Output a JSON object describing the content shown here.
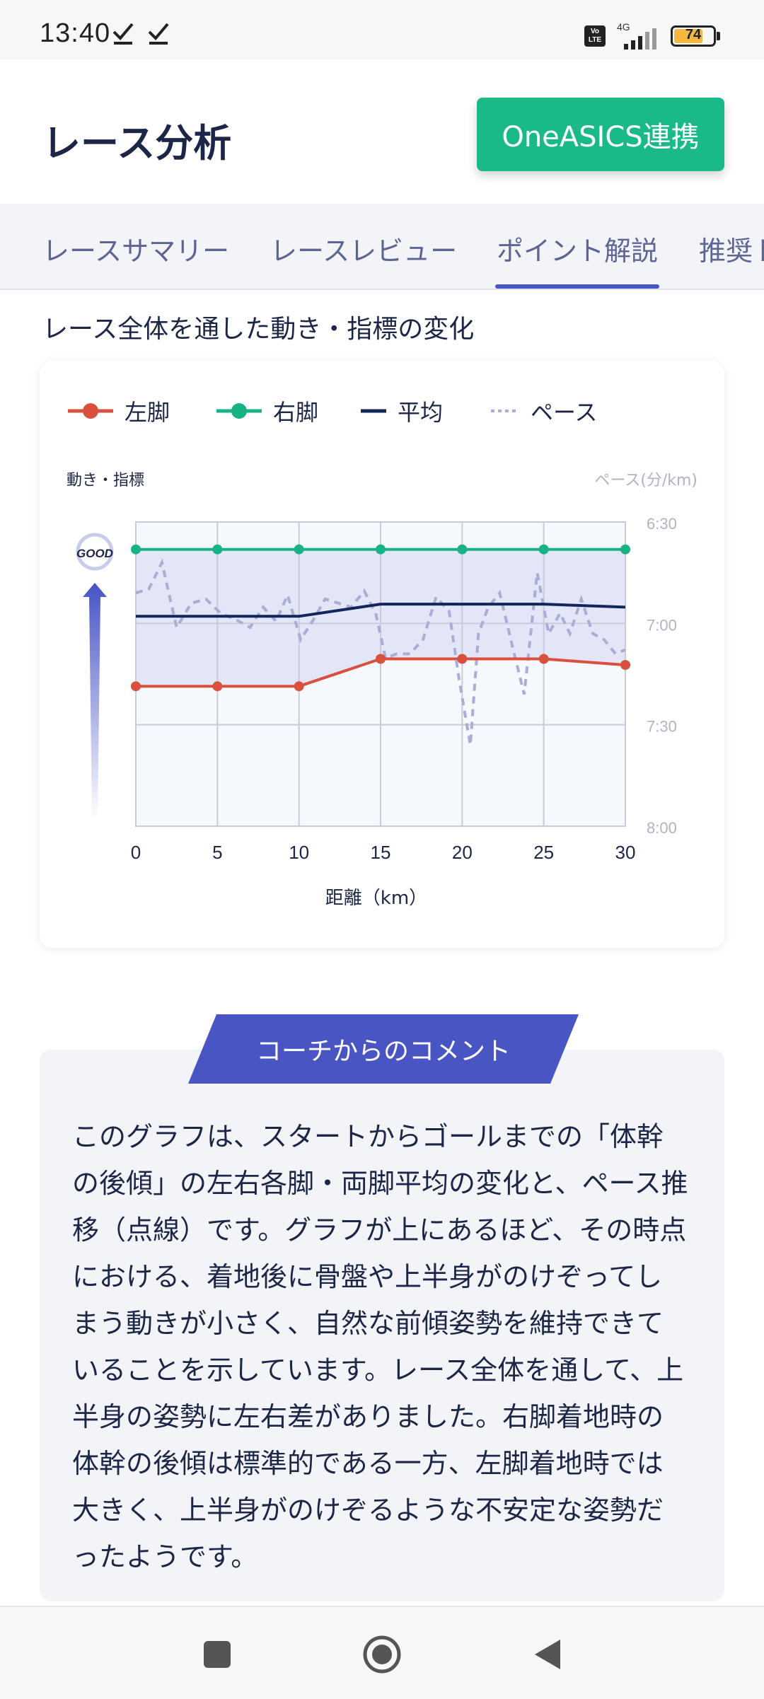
{
  "status_bar": {
    "time": "13:40",
    "network": "4G",
    "volte": "Vo LTE",
    "battery": "74",
    "battery_fraction": 0.74
  },
  "header": {
    "title": "レース分析",
    "oneasics_button": "OneASICS連携"
  },
  "tabs": [
    {
      "label": "レースサマリー",
      "active": false
    },
    {
      "label": "レースレビュー",
      "active": false
    },
    {
      "label": "ポイント解説",
      "active": true
    },
    {
      "label": "推奨ト",
      "active": false
    }
  ],
  "section": {
    "title": "レース全体を通した動き・指標の変化"
  },
  "chart_data": {
    "type": "line",
    "legend": [
      "左脚",
      "右脚",
      "平均",
      "ペース"
    ],
    "legend_placement": "top",
    "ylabel_left": "動き・指標",
    "ylabel_right": "ペース(分/km)",
    "xlabel": "距離（km）",
    "x_ticks": [
      "0",
      "5",
      "10",
      "15",
      "20",
      "25",
      "30"
    ],
    "y_right_ticks": [
      "6:30",
      "7:00",
      "7:30",
      "8:00"
    ],
    "good_label": "GOOD",
    "xlim": [
      0,
      30
    ],
    "ylim_index": [
      0,
      100
    ],
    "ylim_pace_minutes": [
      6.5,
      8.0
    ],
    "grid": true,
    "colors": {
      "left": "#d9503e",
      "right": "#17b386",
      "average": "#14255a",
      "pace": "#a9aed6",
      "band": "#dfe3f6"
    },
    "series": [
      {
        "name": "左脚",
        "key": "left",
        "x": [
          0,
          5,
          10,
          15,
          20,
          25,
          30
        ],
        "values": [
          46,
          46,
          46,
          55,
          55,
          55,
          53
        ]
      },
      {
        "name": "右脚",
        "key": "right",
        "x": [
          0,
          5,
          10,
          15,
          20,
          25,
          30
        ],
        "values": [
          91,
          91,
          91,
          91,
          91,
          91,
          91
        ]
      },
      {
        "name": "平均",
        "key": "average",
        "x": [
          0,
          5,
          10,
          15,
          20,
          25,
          30
        ],
        "values": [
          69,
          69,
          69,
          73,
          73,
          73,
          72
        ],
        "markers": false
      },
      {
        "name": "ペース",
        "key": "pace",
        "dashed": true,
        "x": [
          0,
          0.8,
          1.6,
          2.5,
          3.4,
          4.3,
          5.2,
          6.1,
          7.0,
          7.8,
          8.6,
          9.3,
          10.1,
          10.9,
          11.6,
          12.4,
          13.2,
          14.0,
          14.7,
          15.3,
          16.0,
          16.8,
          17.6,
          18.4,
          19.2,
          19.8,
          20.5,
          21.0,
          21.6,
          22.3,
          23.1,
          23.8,
          24.6,
          25.3,
          26.0,
          26.6,
          27.3,
          28.0,
          28.7,
          29.4,
          30.0
        ],
        "values": [
          6.85,
          6.83,
          6.7,
          7.02,
          6.9,
          6.88,
          6.95,
          6.98,
          7.02,
          6.92,
          6.99,
          6.86,
          7.08,
          6.98,
          6.88,
          6.9,
          6.92,
          6.84,
          6.95,
          7.17,
          7.15,
          7.15,
          7.08,
          6.87,
          6.94,
          7.27,
          7.6,
          7.05,
          6.92,
          6.85,
          7.12,
          7.35,
          6.75,
          7.05,
          6.95,
          7.05,
          6.88,
          7.05,
          7.08,
          7.15,
          7.13
        ]
      }
    ]
  },
  "comment": {
    "header": "コーチからのコメント",
    "lines": [
      "このグラフは、スタートからゴールまでの「体幹",
      "の後傾」の左右各脚・両脚平均の変化と、ペース推",
      "移（点線）です。グラフが上にあるほど、その時点",
      "における、着地後に骨盤や上半身がのけぞってし",
      "まう動きが小さく、自然な前傾姿勢を維持できて",
      "いることを示しています。レース全体を通して、上",
      "半身の姿勢に左右差がありました。右脚着地時の",
      "体幹の後傾は標準的である一方、左脚着地時では",
      "大きく、上半身がのけぞるような不安定な姿勢だ",
      "ったようです。"
    ]
  }
}
